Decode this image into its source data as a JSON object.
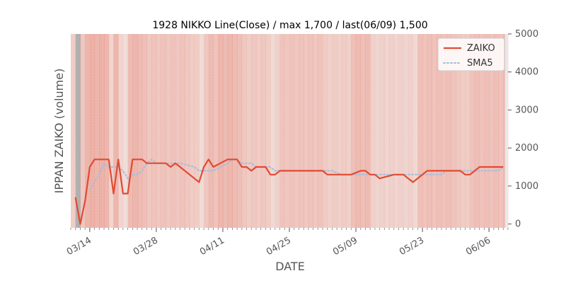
{
  "chart_data": {
    "type": "line",
    "title": "1928 NIKKO Line(Close) / max 1,700 / last(06/09) 1,500",
    "xlabel": "DATE",
    "ylabel": "IPPAN ZAIKO (volume)",
    "ylim": [
      -100,
      5000
    ],
    "yticks": [
      0,
      1000,
      2000,
      3000,
      4000,
      5000
    ],
    "ytick_labels": [
      "0",
      "1000",
      "2000",
      "3000",
      "4000",
      "5000"
    ],
    "y_axis_side": "right",
    "xlim": [
      "2021-03-10",
      "2021-06-10"
    ],
    "xtick_dates": [
      "2021-03-14",
      "2021-03-28",
      "2021-04-11",
      "2021-04-25",
      "2021-05-09",
      "2021-05-23",
      "2021-06-06"
    ],
    "xtick_labels": [
      "03/14",
      "03/28",
      "04/11",
      "04/25",
      "05/09",
      "05/23",
      "06/06"
    ],
    "legend_position": "top-right",
    "grid": false,
    "colors": {
      "series_zaiko": "#e24a33",
      "series_sma5": "#a6bddb",
      "band_dark": "#b0b0b0",
      "band_light": "#e8e8e8"
    },
    "series": [
      {
        "name": "ZAIKO",
        "style": "solid",
        "x": [
          "2021-03-11",
          "2021-03-12",
          "2021-03-13",
          "2021-03-14",
          "2021-03-15",
          "2021-03-16",
          "2021-03-17",
          "2021-03-18",
          "2021-03-19",
          "2021-03-20",
          "2021-03-21",
          "2021-03-22",
          "2021-03-23",
          "2021-03-24",
          "2021-03-25",
          "2021-03-26",
          "2021-03-27",
          "2021-03-28",
          "2021-03-29",
          "2021-03-30",
          "2021-03-31",
          "2021-04-01",
          "2021-04-02",
          "2021-04-05",
          "2021-04-06",
          "2021-04-07",
          "2021-04-08",
          "2021-04-09",
          "2021-04-12",
          "2021-04-13",
          "2021-04-14",
          "2021-04-15",
          "2021-04-16",
          "2021-04-17",
          "2021-04-18",
          "2021-04-19",
          "2021-04-20",
          "2021-04-21",
          "2021-04-22",
          "2021-04-23",
          "2021-04-26",
          "2021-04-27",
          "2021-04-28",
          "2021-04-30",
          "2021-05-01",
          "2021-05-02",
          "2021-05-03",
          "2021-05-04",
          "2021-05-06",
          "2021-05-07",
          "2021-05-08",
          "2021-05-10",
          "2021-05-11",
          "2021-05-12",
          "2021-05-13",
          "2021-05-14",
          "2021-05-17",
          "2021-05-18",
          "2021-05-19",
          "2021-05-20",
          "2021-05-21",
          "2021-05-24",
          "2021-05-25",
          "2021-05-26",
          "2021-05-27",
          "2021-05-28",
          "2021-05-31",
          "2021-06-01",
          "2021-06-02",
          "2021-06-03",
          "2021-06-04",
          "2021-06-07",
          "2021-06-08",
          "2021-06-09"
        ],
        "values": [
          700,
          0,
          600,
          1500,
          1700,
          1700,
          1700,
          1700,
          800,
          1700,
          800,
          800,
          1700,
          1700,
          1700,
          1600,
          1600,
          1600,
          1600,
          1600,
          1500,
          1600,
          1500,
          1200,
          1100,
          1500,
          1700,
          1500,
          1700,
          1700,
          1700,
          1500,
          1500,
          1400,
          1500,
          1500,
          1500,
          1300,
          1300,
          1400,
          1400,
          1400,
          1400,
          1400,
          1400,
          1400,
          1300,
          1300,
          1300,
          1300,
          1300,
          1400,
          1400,
          1300,
          1300,
          1200,
          1300,
          1300,
          1300,
          1200,
          1100,
          1400,
          1400,
          1400,
          1400,
          1400,
          1400,
          1300,
          1300,
          1400,
          1500,
          1500,
          1500,
          1500
        ]
      },
      {
        "name": "SMA5",
        "style": "dotted",
        "x": [
          "2021-03-14",
          "2021-03-15",
          "2021-03-16",
          "2021-03-17",
          "2021-03-18",
          "2021-03-19",
          "2021-03-20",
          "2021-03-21",
          "2021-03-22",
          "2021-03-23",
          "2021-03-24",
          "2021-03-25",
          "2021-03-26",
          "2021-03-27",
          "2021-03-28",
          "2021-03-29",
          "2021-03-30",
          "2021-03-31",
          "2021-04-01",
          "2021-04-02",
          "2021-04-05",
          "2021-04-06",
          "2021-04-07",
          "2021-04-08",
          "2021-04-09",
          "2021-04-12",
          "2021-04-13",
          "2021-04-14",
          "2021-04-15",
          "2021-04-16",
          "2021-04-17",
          "2021-04-18",
          "2021-04-19",
          "2021-04-20",
          "2021-04-21",
          "2021-04-22",
          "2021-04-23",
          "2021-04-26",
          "2021-04-27",
          "2021-04-28",
          "2021-04-30",
          "2021-05-01",
          "2021-05-02",
          "2021-05-03",
          "2021-05-04",
          "2021-05-06",
          "2021-05-07",
          "2021-05-08",
          "2021-05-10",
          "2021-05-11",
          "2021-05-12",
          "2021-05-13",
          "2021-05-14",
          "2021-05-17",
          "2021-05-18",
          "2021-05-19",
          "2021-05-20",
          "2021-05-21",
          "2021-05-24",
          "2021-05-25",
          "2021-05-26",
          "2021-05-27",
          "2021-05-28",
          "2021-05-31",
          "2021-06-01",
          "2021-06-02",
          "2021-06-03",
          "2021-06-04",
          "2021-06-07",
          "2021-06-08",
          "2021-06-09"
        ],
        "values": [
          900,
          1100,
          1300,
          1600,
          1500,
          1500,
          1500,
          1400,
          1200,
          1300,
          1300,
          1400,
          1600,
          1700,
          1600,
          1600,
          1600,
          1600,
          1600,
          1600,
          1500,
          1400,
          1400,
          1400,
          1400,
          1600,
          1700,
          1700,
          1600,
          1600,
          1600,
          1500,
          1500,
          1500,
          1500,
          1400,
          1400,
          1400,
          1400,
          1400,
          1400,
          1400,
          1400,
          1400,
          1400,
          1300,
          1300,
          1300,
          1300,
          1300,
          1300,
          1300,
          1300,
          1300,
          1300,
          1300,
          1300,
          1300,
          1300,
          1300,
          1300,
          1300,
          1400,
          1400,
          1400,
          1400,
          1400,
          1400,
          1400,
          1400,
          1500
        ]
      }
    ],
    "bands": [
      [
        "2021-03-10",
        "2021-03-11",
        0.3
      ],
      [
        "2021-03-11",
        "2021-03-12",
        0.95
      ],
      [
        "2021-03-12",
        "2021-03-13",
        0.35
      ],
      [
        "2021-03-13",
        "2021-03-14",
        0.55
      ],
      [
        "2021-03-14",
        "2021-03-15",
        0.6
      ],
      [
        "2021-03-15",
        "2021-03-16",
        0.55
      ],
      [
        "2021-03-16",
        "2021-03-17",
        0.6
      ],
      [
        "2021-03-17",
        "2021-03-18",
        0.55
      ],
      [
        "2021-03-18",
        "2021-03-19",
        0.2
      ],
      [
        "2021-03-19",
        "2021-03-20",
        0.55
      ],
      [
        "2021-03-20",
        "2021-03-21",
        0.2
      ],
      [
        "2021-03-21",
        "2021-03-22",
        0.1
      ],
      [
        "2021-03-22",
        "2021-03-23",
        0.5
      ],
      [
        "2021-03-23",
        "2021-03-24",
        0.55
      ],
      [
        "2021-03-24",
        "2021-03-25",
        0.5
      ],
      [
        "2021-03-25",
        "2021-03-26",
        0.45
      ],
      [
        "2021-03-26",
        "2021-03-27",
        0.35
      ],
      [
        "2021-03-27",
        "2021-03-28",
        0.4
      ],
      [
        "2021-03-28",
        "2021-03-29",
        0.35
      ],
      [
        "2021-03-29",
        "2021-03-30",
        0.4
      ],
      [
        "2021-03-30",
        "2021-03-31",
        0.35
      ],
      [
        "2021-03-31",
        "2021-04-01",
        0.4
      ],
      [
        "2021-04-01",
        "2021-04-02",
        0.35
      ],
      [
        "2021-04-02",
        "2021-04-03",
        0.4
      ],
      [
        "2021-04-03",
        "2021-04-04",
        0.35
      ],
      [
        "2021-04-04",
        "2021-04-05",
        0.3
      ],
      [
        "2021-04-05",
        "2021-04-06",
        0.3
      ],
      [
        "2021-04-06",
        "2021-04-07",
        0.12
      ],
      [
        "2021-04-07",
        "2021-04-08",
        0.35
      ],
      [
        "2021-04-08",
        "2021-04-09",
        0.5
      ],
      [
        "2021-04-09",
        "2021-04-10",
        0.4
      ],
      [
        "2021-04-10",
        "2021-04-11",
        0.55
      ],
      [
        "2021-04-11",
        "2021-04-12",
        0.5
      ],
      [
        "2021-04-12",
        "2021-04-13",
        0.55
      ],
      [
        "2021-04-13",
        "2021-04-14",
        0.5
      ],
      [
        "2021-04-14",
        "2021-04-15",
        0.45
      ],
      [
        "2021-04-15",
        "2021-04-16",
        0.35
      ],
      [
        "2021-04-16",
        "2021-04-17",
        0.3
      ],
      [
        "2021-04-17",
        "2021-04-18",
        0.35
      ],
      [
        "2021-04-18",
        "2021-04-19",
        0.3
      ],
      [
        "2021-04-19",
        "2021-04-20",
        0.35
      ],
      [
        "2021-04-20",
        "2021-04-21",
        0.3
      ],
      [
        "2021-04-21",
        "2021-04-22",
        0.15
      ],
      [
        "2021-04-22",
        "2021-04-23",
        0.25
      ],
      [
        "2021-04-23",
        "2021-04-24",
        0.4
      ],
      [
        "2021-04-24",
        "2021-04-25",
        0.35
      ],
      [
        "2021-04-25",
        "2021-04-26",
        0.4
      ],
      [
        "2021-04-26",
        "2021-04-27",
        0.35
      ],
      [
        "2021-04-27",
        "2021-04-28",
        0.4
      ],
      [
        "2021-04-28",
        "2021-04-29",
        0.35
      ],
      [
        "2021-04-29",
        "2021-04-30",
        0.4
      ],
      [
        "2021-04-30",
        "2021-05-01",
        0.35
      ],
      [
        "2021-05-01",
        "2021-05-02",
        0.4
      ],
      [
        "2021-05-02",
        "2021-05-03",
        0.3
      ],
      [
        "2021-05-03",
        "2021-05-04",
        0.25
      ],
      [
        "2021-05-04",
        "2021-05-05",
        0.3
      ],
      [
        "2021-05-05",
        "2021-05-06",
        0.25
      ],
      [
        "2021-05-06",
        "2021-05-07",
        0.3
      ],
      [
        "2021-05-07",
        "2021-05-08",
        0.25
      ],
      [
        "2021-05-08",
        "2021-05-09",
        0.45
      ],
      [
        "2021-05-09",
        "2021-05-10",
        0.5
      ],
      [
        "2021-05-10",
        "2021-05-11",
        0.45
      ],
      [
        "2021-05-11",
        "2021-05-12",
        0.5
      ],
      [
        "2021-05-12",
        "2021-05-13",
        0.25
      ],
      [
        "2021-05-13",
        "2021-05-14",
        0.2
      ],
      [
        "2021-05-14",
        "2021-05-15",
        0.25
      ],
      [
        "2021-05-15",
        "2021-05-16",
        0.2
      ],
      [
        "2021-05-16",
        "2021-05-17",
        0.25
      ],
      [
        "2021-05-17",
        "2021-05-18",
        0.2
      ],
      [
        "2021-05-18",
        "2021-05-19",
        0.25
      ],
      [
        "2021-05-19",
        "2021-05-20",
        0.2
      ],
      [
        "2021-05-20",
        "2021-05-21",
        0.25
      ],
      [
        "2021-05-21",
        "2021-05-22",
        0.15
      ],
      [
        "2021-05-22",
        "2021-05-23",
        0.45
      ],
      [
        "2021-05-23",
        "2021-05-24",
        0.4
      ],
      [
        "2021-05-24",
        "2021-05-25",
        0.45
      ],
      [
        "2021-05-25",
        "2021-05-26",
        0.4
      ],
      [
        "2021-05-26",
        "2021-05-27",
        0.45
      ],
      [
        "2021-05-27",
        "2021-05-28",
        0.4
      ],
      [
        "2021-05-28",
        "2021-05-29",
        0.45
      ],
      [
        "2021-05-29",
        "2021-05-30",
        0.4
      ],
      [
        "2021-05-30",
        "2021-05-31",
        0.35
      ],
      [
        "2021-05-31",
        "2021-06-01",
        0.3
      ],
      [
        "2021-06-01",
        "2021-06-02",
        0.3
      ],
      [
        "2021-06-02",
        "2021-06-03",
        0.4
      ],
      [
        "2021-06-03",
        "2021-06-04",
        0.45
      ],
      [
        "2021-06-04",
        "2021-06-05",
        0.4
      ],
      [
        "2021-06-05",
        "2021-06-06",
        0.45
      ],
      [
        "2021-06-06",
        "2021-06-07",
        0.4
      ],
      [
        "2021-06-07",
        "2021-06-08",
        0.45
      ],
      [
        "2021-06-08",
        "2021-06-09",
        0.4
      ],
      [
        "2021-06-09",
        "2021-06-10",
        0.45
      ]
    ],
    "legend": [
      {
        "name": "ZAIKO"
      },
      {
        "name": "SMA5"
      }
    ]
  }
}
